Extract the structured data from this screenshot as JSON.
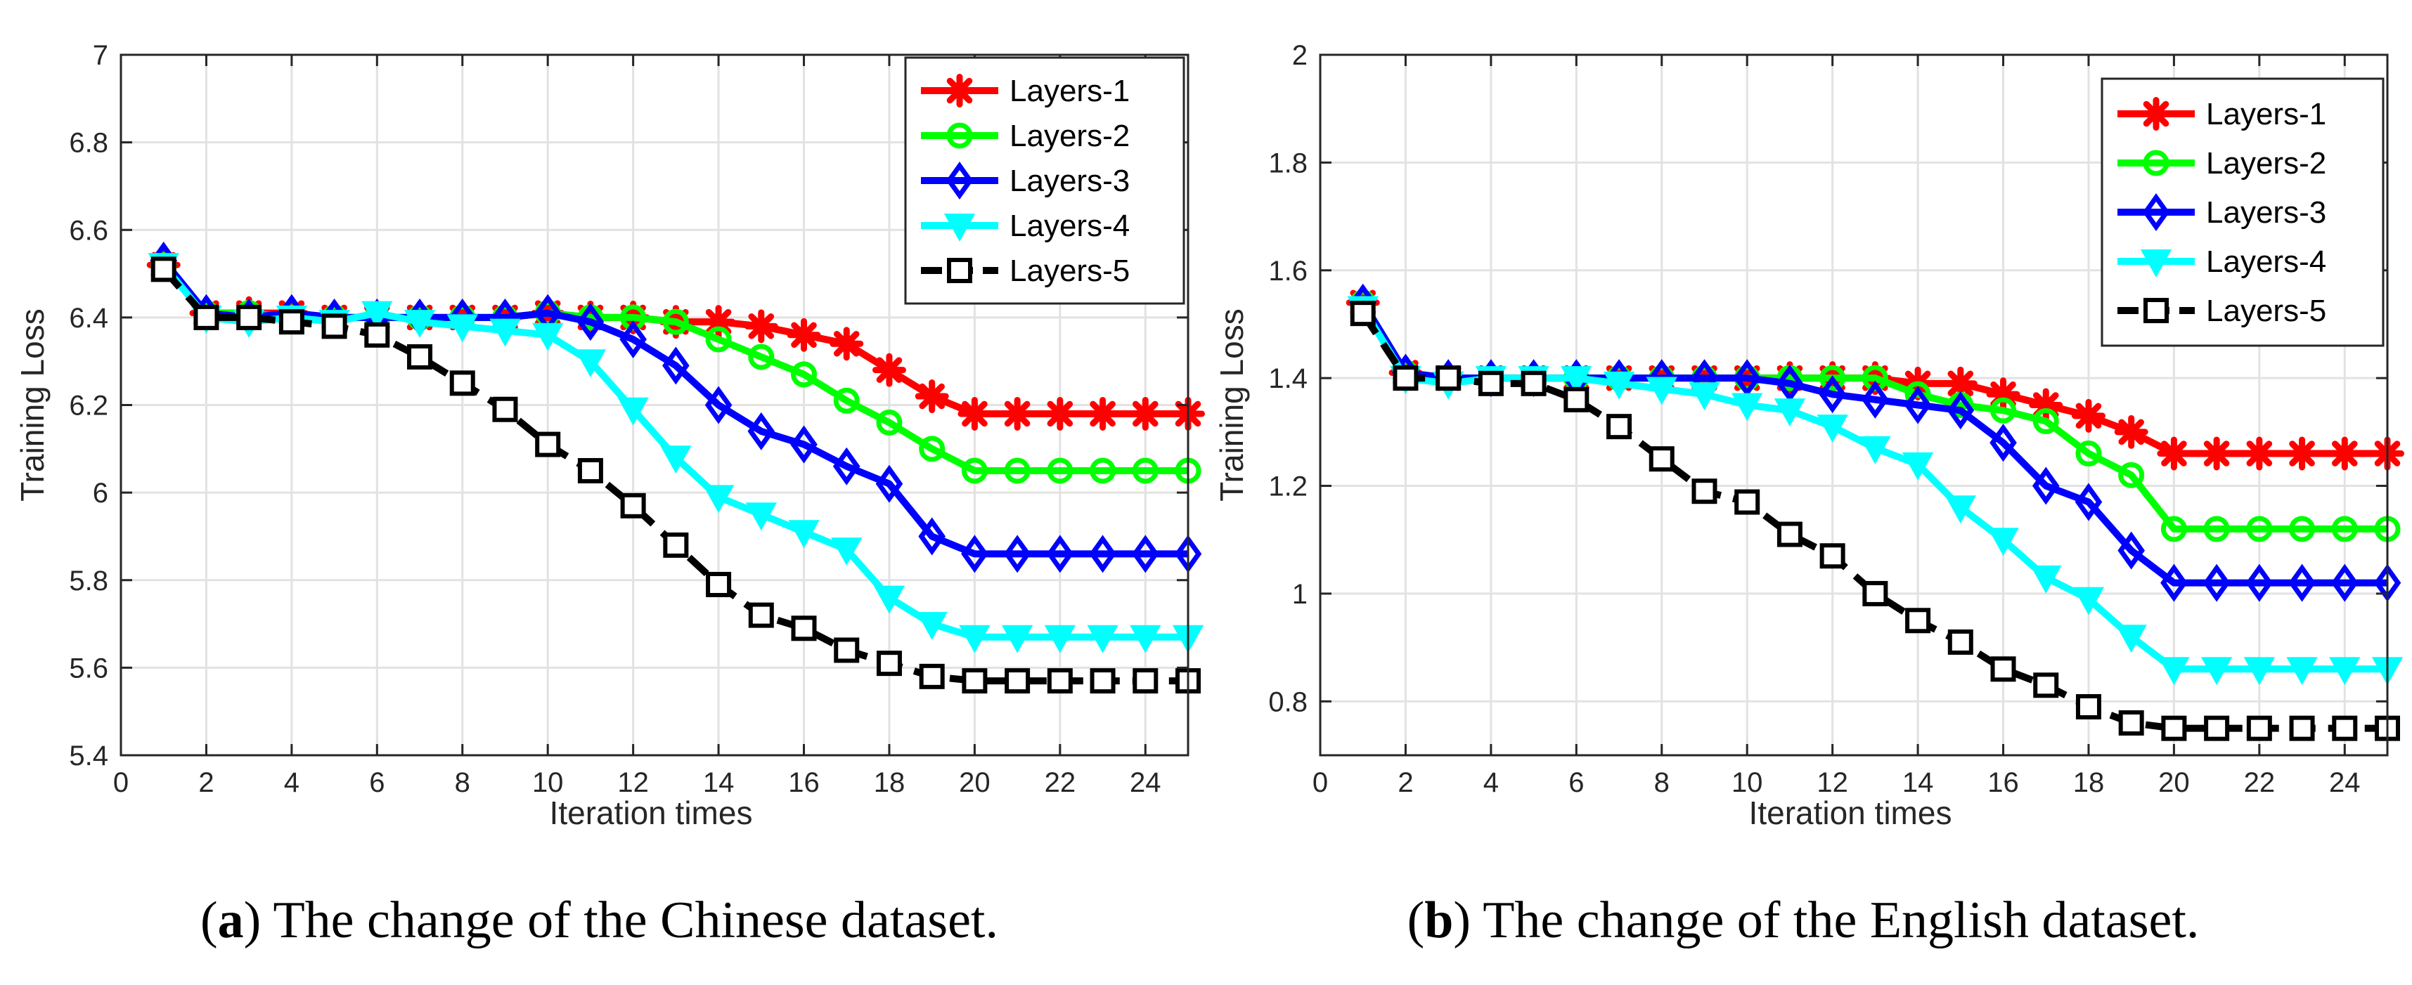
{
  "captions": {
    "a": {
      "tag": "a",
      "text": "The change of the Chinese dataset."
    },
    "b": {
      "tag": "b",
      "text": "The change of the English dataset."
    }
  },
  "series_styles": [
    {
      "name": "Layers-1",
      "color": "#ff0000",
      "marker": "asterisk"
    },
    {
      "name": "Layers-2",
      "color": "#00ff00",
      "marker": "circle"
    },
    {
      "name": "Layers-3",
      "color": "#0000ff",
      "marker": "diamond"
    },
    {
      "name": "Layers-4",
      "color": "#00ffff",
      "marker": "triangle-down"
    },
    {
      "name": "Layers-5",
      "color": "#000000",
      "marker": "square-dashed"
    }
  ],
  "chart_data": [
    {
      "type": "line",
      "title": "",
      "xlabel": "Iteration times",
      "ylabel": "Training Loss",
      "xlim": [
        0,
        25
      ],
      "ylim": [
        5.4,
        7
      ],
      "xticks": [
        0,
        2,
        4,
        6,
        8,
        10,
        12,
        14,
        16,
        18,
        20,
        22,
        24
      ],
      "yticks": [
        5.4,
        5.6,
        5.8,
        6,
        6.2,
        6.4,
        6.6,
        6.8,
        7
      ],
      "ytick_labels": [
        "5.4",
        "5.6",
        "5.8",
        "6",
        "6.2",
        "6.4",
        "6.6",
        "6.8",
        "7"
      ],
      "grid": true,
      "legend": "top-right",
      "x": [
        1,
        2,
        3,
        4,
        5,
        6,
        7,
        8,
        9,
        10,
        11,
        12,
        13,
        14,
        15,
        16,
        17,
        18,
        19,
        20,
        21,
        22,
        23,
        24,
        25
      ],
      "series": [
        {
          "name": "Layers-1",
          "values": [
            6.52,
            6.41,
            6.41,
            6.41,
            6.4,
            6.4,
            6.4,
            6.4,
            6.4,
            6.41,
            6.4,
            6.4,
            6.39,
            6.39,
            6.38,
            6.36,
            6.34,
            6.28,
            6.22,
            6.18,
            6.18,
            6.18,
            6.18,
            6.18,
            6.18
          ]
        },
        {
          "name": "Layers-2",
          "values": [
            6.52,
            6.41,
            6.41,
            6.4,
            6.4,
            6.4,
            6.4,
            6.4,
            6.4,
            6.41,
            6.4,
            6.4,
            6.39,
            6.35,
            6.31,
            6.27,
            6.21,
            6.16,
            6.1,
            6.05,
            6.05,
            6.05,
            6.05,
            6.05,
            6.05
          ]
        },
        {
          "name": "Layers-3",
          "values": [
            6.53,
            6.41,
            6.4,
            6.41,
            6.4,
            6.4,
            6.4,
            6.4,
            6.4,
            6.41,
            6.39,
            6.35,
            6.29,
            6.2,
            6.14,
            6.11,
            6.06,
            6.02,
            5.9,
            5.86,
            5.86,
            5.86,
            5.86,
            5.86,
            5.86
          ]
        },
        {
          "name": "Layers-4",
          "values": [
            6.52,
            6.4,
            6.39,
            6.4,
            6.39,
            6.41,
            6.39,
            6.38,
            6.37,
            6.36,
            6.3,
            6.19,
            6.08,
            5.99,
            5.95,
            5.91,
            5.87,
            5.76,
            5.7,
            5.67,
            5.67,
            5.67,
            5.67,
            5.67,
            5.67
          ]
        },
        {
          "name": "Layers-5",
          "values": [
            6.51,
            6.4,
            6.4,
            6.39,
            6.38,
            6.36,
            6.31,
            6.25,
            6.19,
            6.11,
            6.05,
            5.97,
            5.88,
            5.79,
            5.72,
            5.69,
            5.64,
            5.61,
            5.58,
            5.57,
            5.57,
            5.57,
            5.57,
            5.57,
            5.57
          ]
        }
      ]
    },
    {
      "type": "line",
      "title": "",
      "xlabel": "Iteration times",
      "ylabel": "Training Loss",
      "xlim": [
        0,
        25
      ],
      "ylim": [
        0.7,
        2
      ],
      "xticks": [
        0,
        2,
        4,
        6,
        8,
        10,
        12,
        14,
        16,
        18,
        20,
        22,
        24
      ],
      "yticks": [
        0.8,
        1,
        1.2,
        1.4,
        1.6,
        1.8,
        2
      ],
      "ytick_labels": [
        "0.8",
        "1",
        "1.2",
        "1.4",
        "1.6",
        "1.8",
        "2"
      ],
      "grid": true,
      "legend": "top-right",
      "x": [
        1,
        2,
        3,
        4,
        5,
        6,
        7,
        8,
        9,
        10,
        11,
        12,
        13,
        14,
        15,
        16,
        17,
        18,
        19,
        20,
        21,
        22,
        23,
        24,
        25
      ],
      "series": [
        {
          "name": "Layers-1",
          "values": [
            1.54,
            1.41,
            1.4,
            1.4,
            1.4,
            1.4,
            1.4,
            1.4,
            1.4,
            1.4,
            1.4,
            1.4,
            1.4,
            1.39,
            1.39,
            1.37,
            1.35,
            1.33,
            1.3,
            1.26,
            1.26,
            1.26,
            1.26,
            1.26,
            1.26
          ]
        },
        {
          "name": "Layers-2",
          "values": [
            1.54,
            1.41,
            1.4,
            1.4,
            1.4,
            1.4,
            1.4,
            1.4,
            1.4,
            1.4,
            1.4,
            1.4,
            1.4,
            1.37,
            1.35,
            1.34,
            1.32,
            1.26,
            1.22,
            1.12,
            1.12,
            1.12,
            1.12,
            1.12,
            1.12
          ]
        },
        {
          "name": "Layers-3",
          "values": [
            1.54,
            1.41,
            1.4,
            1.4,
            1.4,
            1.4,
            1.4,
            1.4,
            1.4,
            1.4,
            1.39,
            1.37,
            1.36,
            1.35,
            1.34,
            1.28,
            1.2,
            1.17,
            1.08,
            1.02,
            1.02,
            1.02,
            1.02,
            1.02,
            1.02
          ]
        },
        {
          "name": "Layers-4",
          "values": [
            1.53,
            1.4,
            1.39,
            1.4,
            1.4,
            1.4,
            1.39,
            1.38,
            1.37,
            1.35,
            1.34,
            1.31,
            1.27,
            1.24,
            1.16,
            1.1,
            1.03,
            0.99,
            0.92,
            0.86,
            0.86,
            0.86,
            0.86,
            0.86,
            0.86
          ]
        },
        {
          "name": "Layers-5",
          "values": [
            1.52,
            1.4,
            1.4,
            1.39,
            1.39,
            1.36,
            1.31,
            1.25,
            1.19,
            1.17,
            1.11,
            1.07,
            1.0,
            0.95,
            0.91,
            0.86,
            0.83,
            0.79,
            0.76,
            0.75,
            0.75,
            0.75,
            0.75,
            0.75,
            0.75
          ]
        }
      ]
    }
  ]
}
